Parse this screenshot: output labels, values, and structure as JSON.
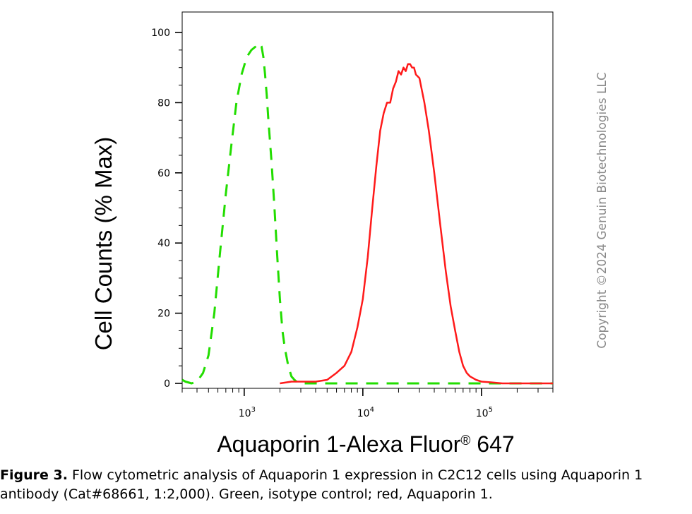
{
  "chart_data": {
    "type": "line",
    "ylabel": "Cell Counts (% Max)",
    "xlabel": "Aquaporin 1-Alexa Fluor",
    "xlabel_sup": "®",
    "xlabel_suffix": " 647",
    "x_scale": "log",
    "xlim": [
      300,
      400000
    ],
    "ylim": [
      0,
      100
    ],
    "yticks": [
      0,
      20,
      40,
      60,
      80,
      100
    ],
    "xticks": [
      {
        "value": 1000,
        "base": "10",
        "exp": "3"
      },
      {
        "value": 10000,
        "base": "10",
        "exp": "4"
      },
      {
        "value": 100000,
        "base": "10",
        "exp": "5"
      }
    ],
    "grid": false,
    "series": [
      {
        "color": "#22dd00",
        "style": "dashed",
        "x": [
          300,
          320,
          360,
          400,
          450,
          500,
          560,
          620,
          700,
          780,
          860,
          950,
          1050,
          1150,
          1250,
          1330,
          1400,
          1450,
          1500,
          1550,
          1600,
          1700,
          1800,
          1900,
          2000,
          2100,
          2200,
          2350,
          2500,
          2650,
          2800,
          3000,
          3500,
          5000,
          10000,
          30000,
          100000,
          400000
        ],
        "y": [
          1,
          0.5,
          0,
          0.5,
          3,
          8,
          20,
          36,
          54,
          68,
          80,
          88,
          93,
          95,
          96,
          97,
          96,
          93,
          88,
          82,
          75,
          63,
          50,
          36,
          24,
          15,
          10,
          5,
          2,
          1,
          0.3,
          0,
          0,
          0,
          0,
          0,
          0,
          0
        ]
      },
      {
        "color": "#ff1a1a",
        "style": "solid",
        "x": [
          2000,
          2500,
          3000,
          3500,
          4000,
          5000,
          6000,
          7000,
          8000,
          9000,
          10000,
          11000,
          12000,
          13000,
          14000,
          15000,
          16000,
          17000,
          18000,
          19000,
          20000,
          21000,
          22000,
          23000,
          24000,
          25000,
          26000,
          27000,
          28000,
          30000,
          33000,
          36000,
          40000,
          45000,
          50000,
          55000,
          60000,
          65000,
          70000,
          75000,
          80000,
          90000,
          100000,
          120000,
          150000,
          200000,
          400000
        ],
        "y": [
          0,
          0.5,
          0.5,
          0.5,
          0.5,
          1,
          3,
          5,
          9,
          16,
          24,
          36,
          50,
          62,
          72,
          77,
          80,
          80,
          84,
          86,
          89,
          88,
          90,
          89,
          91,
          91,
          90,
          90,
          88,
          87,
          80,
          72,
          60,
          45,
          32,
          22,
          15,
          9,
          5,
          3,
          2,
          1,
          0.5,
          0.3,
          0,
          0,
          0
        ]
      }
    ],
    "annotations": [
      "Copyright ©2024 Genuin Biotechnologies LLC"
    ]
  },
  "caption": {
    "label": "Figure 3.",
    "text": " Flow cytometric analysis of Aquaporin 1 expression in C2C12 cells using Aquaporin 1 antibody (Cat#68661, 1:2,000). Green, isotype control; red, Aquaporin 1."
  }
}
